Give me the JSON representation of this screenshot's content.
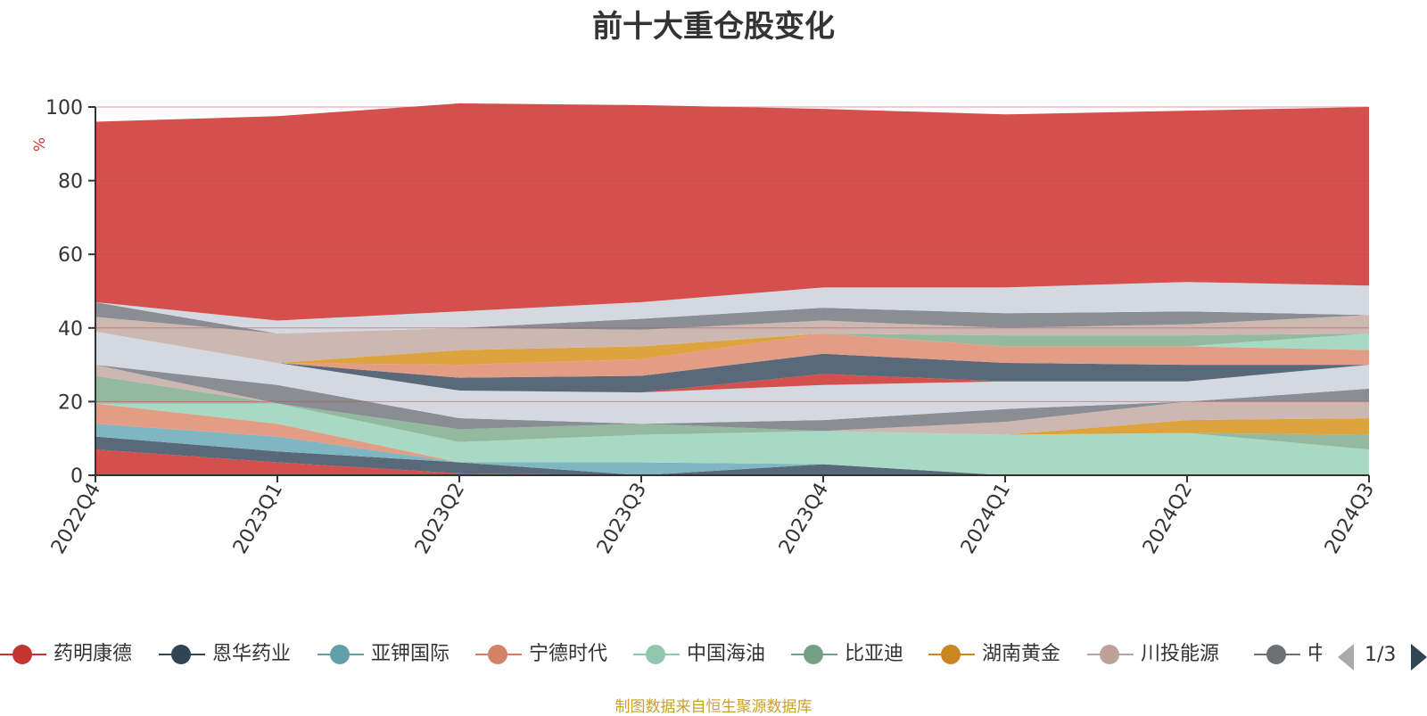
{
  "colors": {
    "axis": "#333333",
    "grid": "#c24d4d",
    "unit": "#d03a3a"
  },
  "chart_data": {
    "type": "area",
    "stacked": true,
    "title": "前十大重仓股变化",
    "ylabel": "%",
    "ylim": [
      0,
      100
    ],
    "yticks": [
      0,
      20,
      40,
      60,
      80,
      100
    ],
    "categories": [
      "2022Q4",
      "2023Q1",
      "2023Q2",
      "2023Q3",
      "2023Q4",
      "2024Q1",
      "2024Q2",
      "2024Q3"
    ],
    "series": [
      {
        "name": "药明康德",
        "legend_color": "#c23531",
        "fill": "#d3504d",
        "values": [
          7,
          3.5,
          0.5,
          0,
          0,
          0,
          0,
          0
        ]
      },
      {
        "name": "恩华药业",
        "legend_color": "#2f4554",
        "fill": "#59697a",
        "values": [
          3.5,
          3,
          3,
          0,
          3,
          0,
          0,
          0
        ]
      },
      {
        "name": "亚钾国际",
        "legend_color": "#61a0a8",
        "fill": "#80b6c1",
        "values": [
          3.5,
          4,
          0,
          3.5,
          0,
          0,
          0,
          0
        ]
      },
      {
        "name": "宁德时代",
        "legend_color": "#d48265",
        "fill": "#e39d84",
        "values": [
          5.5,
          3.5,
          0,
          0,
          0,
          0,
          0,
          0
        ]
      },
      {
        "name": "中国海油",
        "legend_color": "#91c7ae",
        "fill": "#a8d9c5",
        "values": [
          0,
          5.5,
          5.5,
          7.5,
          9,
          11,
          11.5,
          7
        ]
      },
      {
        "name": "比亚迪",
        "legend_color": "#749f83",
        "fill": "#93b99f",
        "values": [
          7.5,
          0,
          3.5,
          3,
          0,
          0,
          0,
          4
        ]
      },
      {
        "name": "湖南黄金",
        "legend_color": "#ca8622",
        "fill": "#dca33e",
        "values": [
          0,
          0,
          0,
          0,
          0,
          0,
          3.5,
          4.5
        ]
      },
      {
        "name": "川投能源",
        "legend_color": "#bda29a",
        "fill": "#cdb8b1",
        "values": [
          3,
          0,
          0,
          0,
          0,
          3.5,
          5,
          4.5
        ]
      },
      {
        "name": "中国神华",
        "legend_color": "#6e7074",
        "fill": "#8a8d93",
        "values": [
          0,
          5,
          3,
          0,
          3,
          3.5,
          0,
          3.5
        ]
      },
      {
        "name": "",
        "fill": "#d4d9e1",
        "values": [
          9,
          6,
          7.5,
          8.5,
          9.5,
          7.5,
          5.5,
          6.5
        ]
      },
      {
        "name": "",
        "fill": "#d3504d",
        "values": [
          0,
          0,
          0,
          0,
          3,
          0,
          0,
          0
        ]
      },
      {
        "name": "",
        "fill": "#59697a",
        "values": [
          0,
          0,
          3.5,
          4.5,
          5.5,
          5,
          4.5,
          0
        ]
      },
      {
        "name": "",
        "fill": "#e39d84",
        "values": [
          0,
          0,
          3.5,
          4.5,
          5.5,
          4.5,
          5,
          4
        ]
      },
      {
        "name": "",
        "fill": "#dca33e",
        "values": [
          0,
          0,
          4,
          3.5,
          0,
          0,
          0,
          0
        ]
      },
      {
        "name": "",
        "fill": "#a8d9c5",
        "values": [
          0,
          0,
          0,
          0,
          0,
          0,
          0,
          4.5
        ]
      },
      {
        "name": "",
        "fill": "#93b99f",
        "values": [
          0,
          0,
          0,
          0,
          0,
          3,
          3,
          0
        ]
      },
      {
        "name": "",
        "fill": "#cdb8b1",
        "values": [
          4,
          8,
          6,
          4.5,
          3.5,
          2,
          3,
          5
        ]
      },
      {
        "name": "",
        "fill": "#8a8d93",
        "values": [
          4,
          0,
          0,
          3,
          3.5,
          4,
          3.5,
          0
        ]
      },
      {
        "name": "",
        "fill": "#d4d9e1",
        "values": [
          0,
          3.5,
          4.5,
          4.5,
          5.5,
          7,
          8,
          8
        ]
      },
      {
        "name": "",
        "fill": "#d3504d",
        "values": [
          49,
          55.5,
          56.5,
          53.5,
          48.5,
          47,
          46.5,
          48.5
        ]
      }
    ]
  },
  "legend": {
    "page_label": "1/3",
    "items": [
      {
        "label": "药明康德",
        "color": "#c23531"
      },
      {
        "label": "恩华药业",
        "color": "#2f4554"
      },
      {
        "label": "亚钾国际",
        "color": "#61a0a8"
      },
      {
        "label": "宁德时代",
        "color": "#d48265"
      },
      {
        "label": "中国海油",
        "color": "#91c7ae"
      },
      {
        "label": "比亚迪",
        "color": "#749f83"
      },
      {
        "label": "湖南黄金",
        "color": "#ca8622"
      },
      {
        "label": "川投能源",
        "color": "#bda29a"
      },
      {
        "label": "中国神华",
        "color": "#6e7074"
      }
    ]
  },
  "footer": {
    "source": "制图数据来自恒生聚源数据库"
  }
}
